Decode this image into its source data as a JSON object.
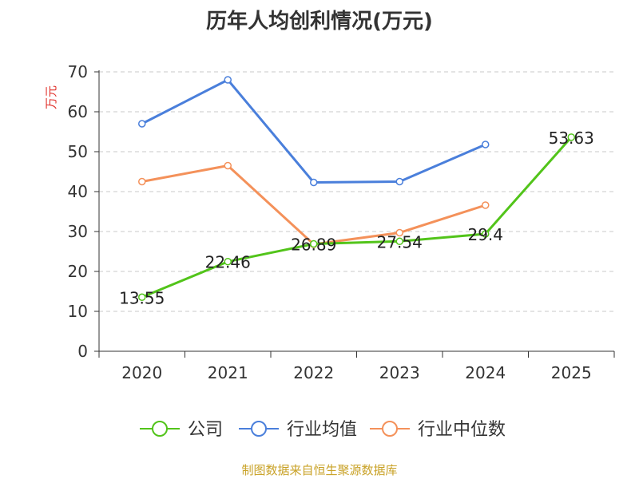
{
  "chart_data": {
    "type": "line",
    "title": "历年人均创利情况(万元)",
    "ylabel": "万元",
    "xlabel": "",
    "categories": [
      "2020",
      "2021",
      "2022",
      "2023",
      "2024",
      "2025"
    ],
    "ylim": [
      0,
      70
    ],
    "yticks": [
      0,
      10,
      20,
      30,
      40,
      50,
      60,
      70
    ],
    "grid": true,
    "legend_position": "bottom-center",
    "series": [
      {
        "name": "公司",
        "color": "#52c41a",
        "values": [
          13.55,
          22.46,
          26.89,
          27.54,
          29.4,
          53.63
        ],
        "labels": [
          "13.55",
          "22.46",
          "26.89",
          "27.54",
          "29.4",
          "53.63"
        ]
      },
      {
        "name": "行业均值",
        "color": "#4a7fdb",
        "values": [
          57,
          68,
          42.3,
          42.5,
          51.8,
          null
        ]
      },
      {
        "name": "行业中位数",
        "color": "#f4915a",
        "values": [
          42.5,
          46.5,
          26.8,
          29.7,
          36.6,
          null
        ]
      }
    ]
  },
  "footer": {
    "text": "制图数据来自恒生聚源数据库",
    "color": "#c9a227"
  },
  "ylabel_color": "#e0312b"
}
